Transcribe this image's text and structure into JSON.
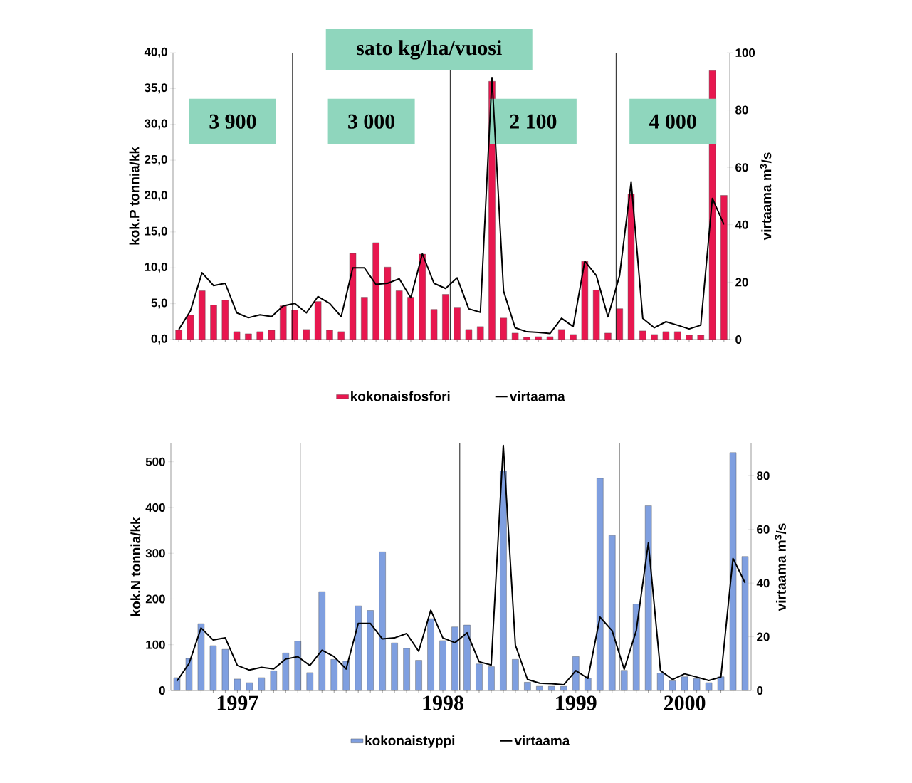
{
  "chart_data": [
    {
      "type": "bar",
      "ylabel": "kok.P tonnia/kk",
      "y2label": "virtaama m$^{3}$/s",
      "categories": [
        null,
        null,
        null,
        null,
        null,
        null,
        null,
        null,
        null,
        null,
        null,
        null,
        null,
        null,
        null,
        null,
        null,
        null,
        null,
        null,
        null,
        null,
        null,
        null,
        null,
        null,
        null,
        null,
        null,
        null,
        null,
        null,
        null,
        null,
        null,
        null,
        null,
        null,
        null,
        null,
        null,
        null,
        null,
        null,
        null,
        null,
        null,
        null
      ],
      "series": [
        {
          "name": "kokonaisfosfori",
          "color": "#e8174f",
          "values": [
            1.3,
            3.4,
            6.8,
            4.8,
            5.5,
            1.1,
            0.8,
            1.1,
            1.3,
            4.7,
            4.1,
            1.4,
            5.3,
            1.3,
            1.1,
            12.0,
            5.9,
            13.5,
            10.1,
            6.8,
            5.9,
            11.9,
            4.2,
            6.3,
            4.5,
            1.4,
            1.8,
            36.0,
            3.0,
            0.9,
            0.3,
            0.4,
            0.4,
            1.4,
            0.7,
            10.9,
            6.9,
            0.9,
            4.3,
            20.3,
            1.2,
            0.7,
            1.1,
            1.1,
            0.6,
            0.6,
            37.5,
            20.1
          ]
        },
        {
          "name": "virtaama",
          "type": "line",
          "axis": "y2",
          "color": "#000000",
          "values": [
            3.5,
            10.0,
            23.3,
            18.8,
            19.6,
            9.3,
            7.6,
            8.6,
            8.0,
            11.7,
            12.6,
            9.3,
            15.0,
            12.6,
            8.0,
            25.0,
            25.0,
            19.2,
            19.6,
            21.2,
            14.6,
            29.9,
            19.6,
            17.8,
            21.5,
            10.7,
            9.5,
            91.3,
            16.9,
            4.1,
            2.7,
            2.5,
            2.1,
            7.4,
            4.5,
            27.3,
            22.3,
            7.9,
            22.3,
            55.0,
            7.4,
            4.1,
            6.2,
            5.0,
            3.7,
            5.0,
            49.2,
            40.1
          ]
        }
      ],
      "ylim": [
        0,
        40
      ],
      "yticks": [
        {
          "value": 0,
          "label": "0,0"
        },
        {
          "value": 5,
          "label": "5,0"
        },
        {
          "value": 10,
          "label": "10,0"
        },
        {
          "value": 15,
          "label": "15,0"
        },
        {
          "value": 20,
          "label": "20,0"
        },
        {
          "value": 25,
          "label": "25,0"
        },
        {
          "value": 30,
          "label": "30,0"
        },
        {
          "value": 35,
          "label": "35,0"
        },
        {
          "value": 40,
          "label": "40,0"
        }
      ],
      "y2lim": [
        0,
        100
      ],
      "y2ticks": [
        0,
        20,
        40,
        60,
        80,
        100
      ],
      "annotations": [
        "sato kg/ha/vuosi",
        "3 900",
        "3 000",
        "2 100",
        "4 000"
      ],
      "tick_labels": "y",
      "legend": "bottom"
    },
    {
      "type": "bar",
      "ylabel": "kok.N tonnia/kk",
      "y2label": "virtaama m$^{3}$/s",
      "categories": [
        null,
        null,
        null,
        null,
        null,
        "1997",
        null,
        null,
        null,
        null,
        null,
        null,
        null,
        null,
        null,
        null,
        null,
        null,
        null,
        null,
        null,
        null,
        "1998",
        null,
        null,
        null,
        null,
        null,
        null,
        null,
        null,
        null,
        null,
        "1999",
        null,
        null,
        null,
        null,
        null,
        null,
        null,
        null,
        "2000",
        null,
        null,
        null,
        null,
        null
      ],
      "series": [
        {
          "name": "kokonaistyppi",
          "color": "#7f9fe0",
          "values": [
            28,
            70,
            146,
            98,
            90,
            25,
            17,
            28,
            43,
            82,
            108,
            39,
            216,
            68,
            64,
            185,
            175,
            303,
            104,
            92,
            66,
            157,
            109,
            139,
            143,
            58,
            52,
            480,
            68,
            18,
            9,
            9,
            9,
            74,
            27,
            464,
            339,
            44,
            189,
            404,
            38,
            21,
            30,
            26,
            17,
            30,
            520,
            293
          ]
        },
        {
          "name": "virtaama",
          "type": "line",
          "axis": "y2",
          "color": "#000000",
          "values": [
            3.5,
            10.0,
            23.3,
            18.8,
            19.6,
            9.3,
            7.6,
            8.6,
            8.0,
            11.7,
            12.6,
            9.3,
            15.0,
            12.6,
            8.0,
            25.0,
            25.0,
            19.2,
            19.6,
            21.2,
            14.6,
            29.9,
            19.6,
            17.8,
            21.5,
            10.7,
            9.5,
            91.3,
            16.9,
            4.1,
            2.7,
            2.5,
            2.1,
            7.4,
            4.5,
            27.3,
            22.3,
            7.9,
            22.3,
            55.0,
            7.4,
            4.1,
            6.2,
            5.0,
            3.7,
            5.0,
            49.2,
            40.1
          ]
        }
      ],
      "ylim": [
        0,
        540
      ],
      "yticks": [
        0,
        100,
        200,
        300,
        400,
        500
      ],
      "y2lim": [
        0,
        92
      ],
      "y2ticks": [
        0,
        20,
        40,
        60,
        80
      ],
      "legend": "bottom"
    }
  ]
}
